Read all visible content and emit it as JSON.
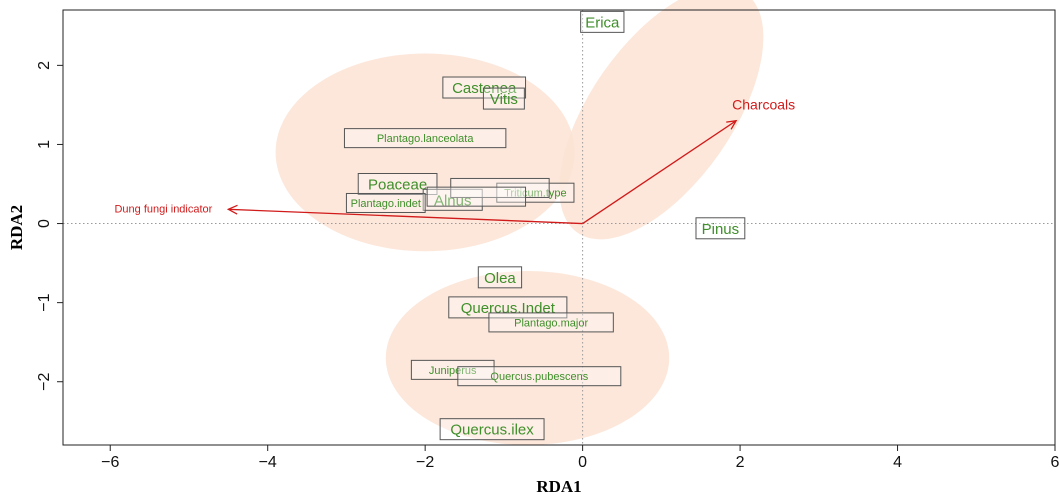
{
  "chart_data": {
    "type": "scatter",
    "title": "",
    "xlabel": "RDA1",
    "ylabel": "RDA2",
    "xlim": [
      -6.6,
      6.0
    ],
    "ylim": [
      -2.8,
      2.7
    ],
    "x_ticks": [
      -6,
      -4,
      -2,
      0,
      2,
      4,
      6
    ],
    "y_ticks": [
      -2,
      -1,
      0,
      1,
      2
    ],
    "x_tick_labels": [
      "−6",
      "−4",
      "−2",
      "0",
      "2",
      "4",
      "6"
    ],
    "y_tick_labels": [
      "−2",
      "−1",
      "0",
      "1",
      "2"
    ],
    "zero_lines": true,
    "groups": [
      {
        "cx": -2.0,
        "cy": 0.9,
        "rx": 1.9,
        "ry": 1.25,
        "rotation": 0
      },
      {
        "cx": 1.0,
        "cy": 1.4,
        "rx": 0.9,
        "ry": 1.85,
        "rotation": 35
      },
      {
        "cx": -0.7,
        "cy": -1.7,
        "rx": 1.8,
        "ry": 1.1,
        "rotation": 0
      }
    ],
    "environmental_vectors": [
      {
        "label": "Charcoals",
        "x": 1.95,
        "y": 1.3
      },
      {
        "label": "Dung  fungi indicator",
        "x": -4.5,
        "y": 0.18
      }
    ],
    "species": [
      {
        "label": "Erica",
        "x": 0.25,
        "y": 2.55,
        "size": "large",
        "box_width": 0.55
      },
      {
        "label": "Castenea",
        "x": -1.25,
        "y": 1.72,
        "size": "large",
        "box_width": 1.05
      },
      {
        "label": "Vitis",
        "x": -1.0,
        "y": 1.58,
        "size": "large",
        "box_width": 0.52
      },
      {
        "label": "Plantago.lanceolata",
        "x": -2.0,
        "y": 1.08,
        "size": "small",
        "box_width": 2.05
      },
      {
        "label": "Poaceae",
        "x": -2.35,
        "y": 0.5,
        "size": "large",
        "box_width": 1.0
      },
      {
        "label": "Alnus",
        "x": -1.65,
        "y": 0.3,
        "size": "large",
        "box_width": 0.75
      },
      {
        "label": "Triticum.type",
        "x": -0.6,
        "y": 0.39,
        "size": "small",
        "box_width": 0.98
      },
      {
        "label": "Plantago.indet",
        "x": -2.5,
        "y": 0.26,
        "size": "small",
        "box_width": 1.0
      },
      {
        "label": "",
        "x": -1.05,
        "y": 0.45,
        "size": "small",
        "box_width": 1.25
      },
      {
        "label": "",
        "x": -1.35,
        "y": 0.34,
        "size": "small",
        "box_width": 1.25
      },
      {
        "label": "Pinus",
        "x": 1.75,
        "y": -0.06,
        "size": "large",
        "box_width": 0.62
      },
      {
        "label": "Olea",
        "x": -1.05,
        "y": -0.68,
        "size": "large",
        "box_width": 0.55
      },
      {
        "label": "Quercus.Indet",
        "x": -0.95,
        "y": -1.06,
        "size": "large",
        "box_width": 1.5
      },
      {
        "label": "Plantago.major",
        "x": -0.4,
        "y": -1.25,
        "size": "small",
        "box_width": 1.58
      },
      {
        "label": "Juniperus",
        "x": -1.65,
        "y": -1.85,
        "size": "small",
        "box_width": 1.05
      },
      {
        "label": "Quercus.pubescens",
        "x": -0.55,
        "y": -1.93,
        "size": "small",
        "box_width": 2.07
      },
      {
        "label": "Quercus.ilex",
        "x": -1.15,
        "y": -2.6,
        "size": "large",
        "box_width": 1.32
      }
    ],
    "colors": {
      "species": "#3f8f2a",
      "vectors": "#d11a1a",
      "group_fill": "#fbe3d3",
      "zero_line": "#9a9a9a",
      "box_stroke": "#555555"
    }
  }
}
